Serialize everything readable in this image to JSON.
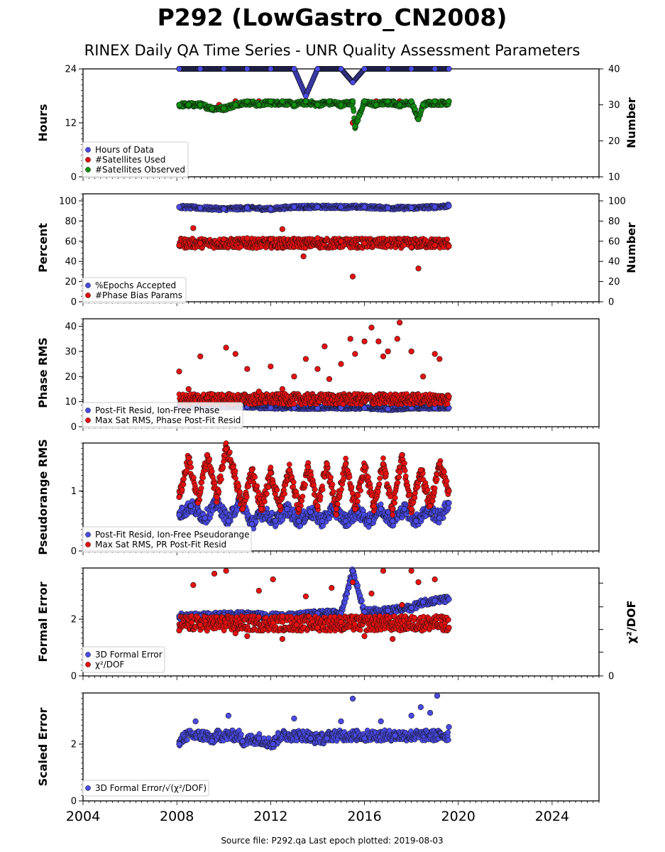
{
  "figure": {
    "title": "P292 (LowGastro_CN2008)",
    "subtitle": "RINEX Daily QA Time Series - UNR Quality Assessment Parameters",
    "footer": "Source file: P292.qa Last epoch plotted: 2019-08-03"
  },
  "chart_data": [
    {
      "type": "scatter",
      "panel": "hours",
      "ylabel": "Hours",
      "ylabel_right": "Number",
      "xlim": [
        2004.0,
        2026.0
      ],
      "x_ticks": [
        "2004",
        "2008",
        "2012",
        "2016",
        "2020",
        "2024"
      ],
      "ylim": [
        0,
        24
      ],
      "y_ticks": [
        "0",
        "12",
        "24"
      ],
      "ylim_right": [
        10,
        40
      ],
      "y_ticks_right": [
        "10",
        "20",
        "30",
        "40"
      ],
      "legend_position": "lower-left",
      "series": [
        {
          "name": "Hours of Data",
          "axis": "left",
          "color": "#4a4ae8",
          "x": [
            2008.1,
            2009.0,
            2010.0,
            2011.0,
            2012.0,
            2013.0,
            2013.5,
            2014.0,
            2015.0,
            2015.5,
            2016.0,
            2017.0,
            2018.0,
            2019.0,
            2019.6
          ],
          "y": [
            24,
            24,
            24,
            24,
            24,
            24,
            18,
            24,
            24,
            21,
            24,
            24,
            24,
            24,
            24
          ]
        },
        {
          "name": "#Satellites Used",
          "axis": "right",
          "color": "#e81010",
          "x": [
            2008.1,
            2009.0,
            2009.8,
            2010.5,
            2011.5,
            2012.5,
            2013.5,
            2014.5,
            2015.5,
            2016.5,
            2017.5,
            2018.3,
            2019.0,
            2019.6
          ],
          "y": [
            30,
            30,
            30,
            31,
            31,
            31,
            31,
            31,
            25,
            31,
            31,
            27,
            31,
            31
          ]
        },
        {
          "name": "#Satellites Observed",
          "axis": "right",
          "color": "#109010",
          "x": [
            2008.1,
            2008.5,
            2009.0,
            2009.5,
            2010.0,
            2010.5,
            2011.0,
            2011.5,
            2012.0,
            2012.5,
            2013.0,
            2013.5,
            2014.0,
            2014.5,
            2015.0,
            2015.5,
            2015.6,
            2016.0,
            2016.5,
            2017.0,
            2017.5,
            2018.0,
            2018.3,
            2018.5,
            2019.0,
            2019.6
          ],
          "y": [
            30,
            30,
            30,
            29,
            29,
            30,
            31,
            30,
            31,
            31,
            30,
            31,
            30,
            31,
            30,
            31,
            24,
            31,
            30,
            31,
            30,
            31,
            26,
            30,
            31,
            31
          ]
        }
      ]
    },
    {
      "type": "scatter",
      "panel": "percent",
      "ylabel": "Percent",
      "ylabel_right": "Number",
      "xlim": [
        2004.0,
        2026.0
      ],
      "ylim": [
        0,
        107
      ],
      "y_ticks": [
        "0",
        "20",
        "40",
        "60",
        "80",
        "100"
      ],
      "y_ticks_right": [
        "0",
        "20",
        "40",
        "60",
        "80",
        "100"
      ],
      "legend_position": "lower-left",
      "series": [
        {
          "name": "%Epochs Accepted",
          "color": "#4a4ae8",
          "x": [
            2008.1,
            2009.0,
            2010.0,
            2011.0,
            2012.0,
            2013.0,
            2014.0,
            2015.0,
            2016.0,
            2017.0,
            2018.0,
            2019.0,
            2019.6
          ],
          "y": [
            94,
            93,
            92,
            93,
            92,
            94,
            94,
            94,
            94,
            93,
            93,
            94,
            95
          ]
        },
        {
          "name": "#Phase Bias Params",
          "color": "#e81010",
          "x": [
            2008.1,
            2008.7,
            2009.0,
            2010.0,
            2011.0,
            2012.0,
            2012.5,
            2013.4,
            2014.0,
            2015.0,
            2015.5,
            2016.0,
            2017.0,
            2018.0,
            2018.3,
            2019.0,
            2019.6
          ],
          "y": [
            56,
            73,
            58,
            62,
            63,
            62,
            72,
            45,
            63,
            60,
            25,
            58,
            56,
            54,
            33,
            56,
            55
          ]
        }
      ]
    },
    {
      "type": "scatter",
      "panel": "phase-rms",
      "ylabel": "Phase RMS",
      "xlim": [
        2004.0,
        2026.0
      ],
      "ylim": [
        0,
        43
      ],
      "y_ticks": [
        "0",
        "10",
        "20",
        "30",
        "40"
      ],
      "legend_position": "lower-left",
      "series": [
        {
          "name": "Post-Fit Resid, Ion-Free Phase",
          "color": "#4a4ae8",
          "x": [
            2008.1,
            2009.0,
            2010.0,
            2011.0,
            2012.0,
            2013.0,
            2014.0,
            2015.0,
            2016.0,
            2017.0,
            2018.0,
            2019.0,
            2019.6
          ],
          "y": [
            8,
            8,
            8,
            8,
            7.5,
            7.5,
            7.5,
            7.5,
            7.5,
            7,
            7.5,
            7.5,
            7.5
          ]
        },
        {
          "name": "Max Sat RMS, Phase Post-Fit Resid",
          "color": "#e81010",
          "x": [
            2008.1,
            2008.5,
            2009.0,
            2009.5,
            2010.1,
            2010.5,
            2011.0,
            2011.5,
            2012.0,
            2012.5,
            2013.0,
            2013.5,
            2014.0,
            2014.3,
            2014.5,
            2015.0,
            2015.4,
            2015.6,
            2016.0,
            2016.3,
            2016.6,
            2016.8,
            2017.0,
            2017.4,
            2017.5,
            2018.0,
            2018.5,
            2019.0,
            2019.2,
            2019.6
          ],
          "y": [
            22,
            15,
            28,
            13,
            31.5,
            29,
            23,
            14,
            24,
            15,
            20,
            27,
            23,
            32,
            19,
            25,
            35,
            29,
            34,
            39.5,
            34,
            28,
            30,
            35,
            41.5,
            30,
            20,
            29,
            27,
            12
          ]
        }
      ]
    },
    {
      "type": "scatter",
      "panel": "pseudorange-rms",
      "ylabel": "Pseudorange RMS",
      "xlim": [
        2004.0,
        2026.0
      ],
      "ylim": [
        0,
        1.8
      ],
      "y_ticks": [
        "0",
        "1"
      ],
      "legend_position": "lower-left",
      "series": [
        {
          "name": "Post-Fit Resid, Ion-Free Pseudorange",
          "color": "#4a4ae8",
          "x": [
            2008.1,
            2008.6,
            2009.2,
            2009.7,
            2010.2,
            2010.7,
            2011.2,
            2011.7,
            2012.2,
            2012.7,
            2013.2,
            2013.7,
            2014.2,
            2014.7,
            2015.2,
            2015.7,
            2016.2,
            2016.7,
            2017.2,
            2017.7,
            2018.2,
            2018.7,
            2019.2,
            2019.6
          ],
          "y": [
            0.6,
            0.75,
            0.55,
            0.8,
            0.5,
            0.85,
            0.45,
            0.65,
            0.5,
            0.7,
            0.5,
            0.65,
            0.5,
            0.7,
            0.5,
            0.65,
            0.5,
            0.7,
            0.5,
            0.7,
            0.5,
            0.7,
            0.55,
            0.8
          ]
        },
        {
          "name": "Max Sat RMS, PR Post-Fit Resid",
          "color": "#e81010",
          "x": [
            2008.1,
            2008.5,
            2008.9,
            2009.3,
            2009.7,
            2010.1,
            2010.4,
            2010.8,
            2011.2,
            2011.6,
            2012.0,
            2012.4,
            2012.8,
            2013.2,
            2013.6,
            2014.0,
            2014.4,
            2014.8,
            2015.2,
            2015.6,
            2016.0,
            2016.4,
            2016.8,
            2017.2,
            2017.6,
            2018.0,
            2018.4,
            2018.8,
            2019.2,
            2019.6
          ],
          "y": [
            0.9,
            1.55,
            0.8,
            1.6,
            0.9,
            1.7,
            1.4,
            0.7,
            1.35,
            0.7,
            1.3,
            0.75,
            1.35,
            0.7,
            1.4,
            0.75,
            1.45,
            0.7,
            1.45,
            0.7,
            1.4,
            0.75,
            1.45,
            0.7,
            1.6,
            0.7,
            1.35,
            0.75,
            1.45,
            1.0
          ]
        }
      ]
    },
    {
      "type": "scatter",
      "panel": "formal-error",
      "ylabel": "Formal Error",
      "ylabel_right": "χ²/DOF",
      "xlim": [
        2004.0,
        2026.0
      ],
      "ylim": [
        0,
        3.8
      ],
      "y_ticks": [
        "0",
        "2"
      ],
      "y_ticks_right": [
        "0"
      ],
      "legend_position": "lower-left",
      "series": [
        {
          "name": "3D Formal Error",
          "color": "#4a4ae8",
          "x": [
            2008.1,
            2009.0,
            2010.0,
            2011.0,
            2012.0,
            2013.0,
            2014.0,
            2015.0,
            2015.5,
            2016.0,
            2017.0,
            2018.0,
            2018.5,
            2019.0,
            2019.6
          ],
          "y": [
            2.1,
            2.1,
            2.15,
            2.15,
            2.1,
            2.1,
            2.2,
            2.2,
            3.7,
            2.25,
            2.3,
            2.4,
            2.6,
            2.65,
            2.7
          ]
        },
        {
          "name": "χ²/DOF",
          "color": "#e81010",
          "x": [
            2008.1,
            2008.7,
            2009.0,
            2009.6,
            2010.1,
            2010.5,
            2011.0,
            2011.5,
            2012.1,
            2012.5,
            2013.1,
            2013.5,
            2014.0,
            2014.6,
            2015.0,
            2015.5,
            2016.0,
            2016.3,
            2016.8,
            2017.2,
            2017.6,
            2018.0,
            2018.3,
            2019.0,
            2019.6
          ],
          "y": [
            1.6,
            3.2,
            1.8,
            3.6,
            3.7,
            1.5,
            1.4,
            3.0,
            3.4,
            1.3,
            1.8,
            2.8,
            1.7,
            3.1,
            1.9,
            3.3,
            1.4,
            2.9,
            3.7,
            1.3,
            2.5,
            3.7,
            3.3,
            3.4,
            1.7
          ]
        }
      ]
    },
    {
      "type": "scatter",
      "panel": "scaled-error",
      "ylabel": "Scaled Error",
      "xlim": [
        2004.0,
        2026.0
      ],
      "ylim": [
        0,
        3.8
      ],
      "y_ticks": [
        "0",
        "2"
      ],
      "legend_position": "lower-left",
      "series": [
        {
          "name": "3D Formal Error/√(χ²/DOF)",
          "color": "#4a4ae8",
          "x": [
            2008.1,
            2008.8,
            2009.5,
            2010.2,
            2010.8,
            2011.5,
            2012.1,
            2013.0,
            2013.7,
            2014.4,
            2015.0,
            2015.5,
            2016.0,
            2016.7,
            2017.3,
            2018.0,
            2018.4,
            2018.8,
            2019.1,
            2019.6
          ],
          "y": [
            2.0,
            2.8,
            2.1,
            3.0,
            2.1,
            2.2,
            2.0,
            2.9,
            2.2,
            2.2,
            2.8,
            3.6,
            2.2,
            2.8,
            2.3,
            3.0,
            3.3,
            3.1,
            3.7,
            2.6
          ]
        }
      ]
    }
  ]
}
